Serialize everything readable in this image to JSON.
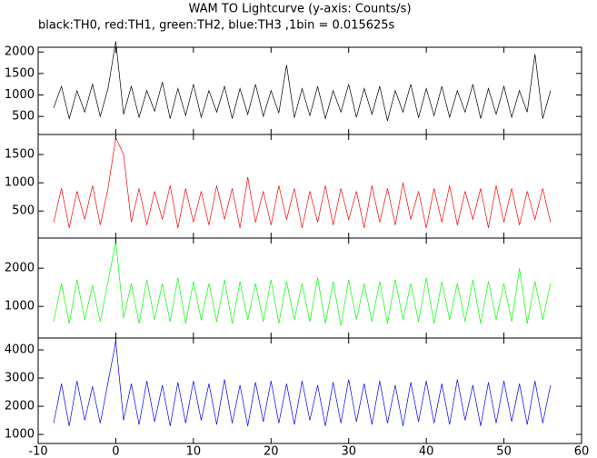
{
  "chart_data": [
    {
      "type": "line",
      "title": "WAM TO Lightcurve (y-axis: Counts/s)",
      "subtitle": "black:TH0, red:TH1, green:TH2, blue:TH3 ,1bin = 0.015625s",
      "color": "#000000",
      "x": [
        -8,
        -7,
        -6,
        -5,
        -4,
        -3,
        -2,
        -1,
        0,
        1,
        2,
        3,
        4,
        5,
        6,
        7,
        8,
        9,
        10,
        11,
        12,
        13,
        14,
        15,
        16,
        17,
        18,
        19,
        20,
        21,
        22,
        23,
        24,
        25,
        26,
        27,
        28,
        29,
        30,
        31,
        32,
        33,
        34,
        35,
        36,
        37,
        38,
        39,
        40,
        41,
        42,
        43,
        44,
        45,
        46,
        47,
        48,
        49,
        50,
        51,
        52,
        53,
        54,
        55,
        56
      ],
      "values": [
        700,
        1200,
        450,
        1100,
        600,
        1250,
        500,
        1150,
        2250,
        550,
        1200,
        480,
        1100,
        620,
        1300,
        450,
        1150,
        520,
        1250,
        480,
        1100,
        600,
        1200,
        450,
        1150,
        550,
        1250,
        500,
        1100,
        580,
        1700,
        470,
        1150,
        520,
        1200,
        450,
        1100,
        600,
        1250,
        480,
        1150,
        550,
        1200,
        400,
        1100,
        600,
        1250,
        470,
        1150,
        520,
        1200,
        480,
        1100,
        600,
        1250,
        450,
        1150,
        550,
        1200,
        480,
        1100,
        600,
        1950,
        450,
        1100
      ],
      "xlim": [
        -10,
        60
      ],
      "ylim": [
        80,
        2110
      ],
      "yticks": [
        500,
        1000,
        1500,
        2000
      ]
    },
    {
      "type": "line",
      "color": "#ff0000",
      "x": [
        -8,
        -7,
        -6,
        -5,
        -4,
        -3,
        -2,
        -1,
        0,
        1,
        2,
        3,
        4,
        5,
        6,
        7,
        8,
        9,
        10,
        11,
        12,
        13,
        14,
        15,
        16,
        17,
        18,
        19,
        20,
        21,
        22,
        23,
        24,
        25,
        26,
        27,
        28,
        29,
        30,
        31,
        32,
        33,
        34,
        35,
        36,
        37,
        38,
        39,
        40,
        41,
        42,
        43,
        44,
        45,
        46,
        47,
        48,
        49,
        50,
        51,
        52,
        53,
        54,
        55,
        56
      ],
      "values": [
        300,
        900,
        200,
        850,
        350,
        950,
        250,
        900,
        1800,
        1500,
        300,
        900,
        250,
        850,
        350,
        950,
        200,
        900,
        300,
        850,
        250,
        950,
        350,
        900,
        200,
        1100,
        300,
        850,
        250,
        950,
        350,
        900,
        200,
        850,
        300,
        950,
        250,
        900,
        350,
        850,
        200,
        950,
        300,
        900,
        250,
        1000,
        350,
        850,
        200,
        900,
        300,
        950,
        250,
        850,
        350,
        900,
        200,
        950,
        300,
        900,
        250,
        850,
        350,
        900,
        300
      ],
      "xlim": [
        -10,
        60
      ],
      "ylim": [
        20,
        1855
      ],
      "yticks": [
        500,
        1000,
        1500
      ]
    },
    {
      "type": "line",
      "color": "#00ff00",
      "x": [
        -8,
        -7,
        -6,
        -5,
        -4,
        -3,
        -2,
        -1,
        0,
        1,
        2,
        3,
        4,
        5,
        6,
        7,
        8,
        9,
        10,
        11,
        12,
        13,
        14,
        15,
        16,
        17,
        18,
        19,
        20,
        21,
        22,
        23,
        24,
        25,
        26,
        27,
        28,
        29,
        30,
        31,
        32,
        33,
        34,
        35,
        36,
        37,
        38,
        39,
        40,
        41,
        42,
        43,
        44,
        45,
        46,
        47,
        48,
        49,
        50,
        51,
        52,
        53,
        54,
        55,
        56
      ],
      "values": [
        600,
        1600,
        550,
        1700,
        650,
        1550,
        600,
        1650,
        2700,
        700,
        1600,
        550,
        1700,
        650,
        1600,
        600,
        1750,
        550,
        1650,
        650,
        1600,
        600,
        1700,
        550,
        1650,
        650,
        1600,
        600,
        1700,
        550,
        1650,
        650,
        1600,
        600,
        1750,
        550,
        1650,
        500,
        1700,
        650,
        1600,
        600,
        1650,
        550,
        1700,
        650,
        1600,
        600,
        1750,
        550,
        1650,
        650,
        1600,
        600,
        1700,
        550,
        1650,
        650,
        1600,
        600,
        2000,
        550,
        1650,
        650,
        1600
      ],
      "xlim": [
        -10,
        60
      ],
      "ylim": [
        170,
        2790
      ],
      "yticks": [
        1000,
        2000
      ]
    },
    {
      "type": "line",
      "color": "#0000ff",
      "x": [
        -8,
        -7,
        -6,
        -5,
        -4,
        -3,
        -2,
        -1,
        0,
        1,
        2,
        3,
        4,
        5,
        6,
        7,
        8,
        9,
        10,
        11,
        12,
        13,
        14,
        15,
        16,
        17,
        18,
        19,
        20,
        21,
        22,
        23,
        24,
        25,
        26,
        27,
        28,
        29,
        30,
        31,
        32,
        33,
        34,
        35,
        36,
        37,
        38,
        39,
        40,
        41,
        42,
        43,
        44,
        45,
        46,
        47,
        48,
        49,
        50,
        51,
        52,
        53,
        54,
        55,
        56
      ],
      "values": [
        1400,
        2800,
        1300,
        2900,
        1500,
        2700,
        1400,
        2850,
        4300,
        1500,
        2800,
        1350,
        2900,
        1450,
        2750,
        1300,
        2850,
        1400,
        2900,
        1500,
        2800,
        1350,
        2950,
        1400,
        2750,
        1300,
        2850,
        1450,
        2900,
        1400,
        2800,
        1350,
        2900,
        1500,
        2750,
        1300,
        2850,
        1400,
        2950,
        1450,
        2800,
        1350,
        2900,
        1400,
        2750,
        1300,
        2850,
        1450,
        2900,
        1400,
        2800,
        1350,
        2950,
        1500,
        2750,
        1300,
        2850,
        1400,
        2900,
        1450,
        2800,
        1350,
        2900,
        1400,
        2750
      ],
      "xlim": [
        -10,
        60
      ],
      "ylim": [
        680,
        4420
      ],
      "yticks": [
        1000,
        2000,
        3000,
        4000
      ],
      "xticks": [
        -10,
        0,
        10,
        20,
        30,
        40,
        50,
        60
      ]
    }
  ]
}
